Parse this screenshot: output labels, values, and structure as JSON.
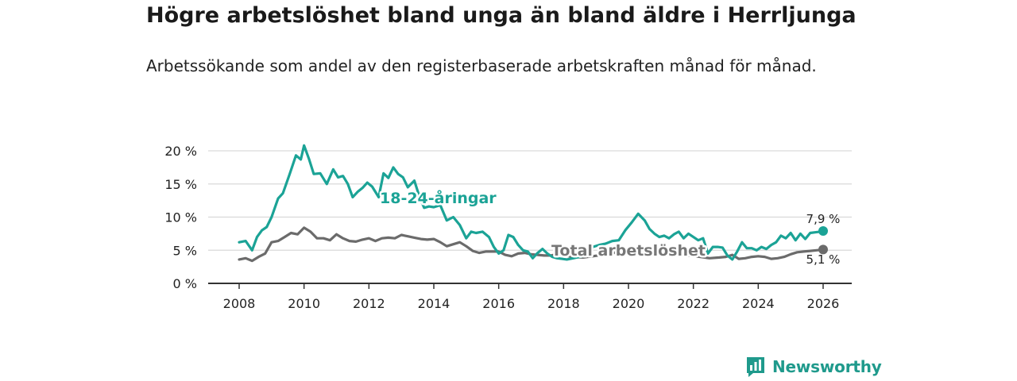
{
  "title": "Högre arbetslöshet bland unga än bland äldre i Herrljunga",
  "subtitle": "Arbetssökande som andel av den registerbaserade arbetskraften månad för månad.",
  "brand": "Newsworthy",
  "colors": {
    "youth": "#1ba396",
    "total": "#6b6b6b",
    "grid": "#d9d9d9",
    "axis": "#333333",
    "brand": "#1f9a8c"
  },
  "chart_data": {
    "type": "line",
    "title": "Högre arbetslöshet bland unga än bland äldre i Herrljunga",
    "xlabel": "",
    "ylabel": "",
    "xlim": [
      2007.5,
      2026.6
    ],
    "ylim": [
      0,
      20
    ],
    "x_ticks": [
      2008,
      2010,
      2012,
      2014,
      2016,
      2018,
      2020,
      2022,
      2024,
      2026
    ],
    "y_ticks": [
      0,
      5,
      10,
      15,
      20
    ],
    "y_tick_labels": [
      "0 %",
      "5 %",
      "10 %",
      "15 %",
      "20 %"
    ],
    "series": [
      {
        "name": "18-24-åringar",
        "label": "18-24-åringar",
        "end_label": "7,9 %",
        "x": [
          2008.0,
          2008.2,
          2008.4,
          2008.55,
          2008.7,
          2008.85,
          2009.0,
          2009.2,
          2009.35,
          2009.55,
          2009.75,
          2009.9,
          2010.0,
          2010.15,
          2010.3,
          2010.5,
          2010.7,
          2010.9,
          2011.05,
          2011.2,
          2011.35,
          2011.5,
          2011.65,
          2011.8,
          2011.95,
          2012.1,
          2012.3,
          2012.45,
          2012.6,
          2012.75,
          2012.9,
          2013.05,
          2013.2,
          2013.4,
          2013.55,
          2013.7,
          2013.85,
          2014.0,
          2014.2,
          2014.4,
          2014.6,
          2014.8,
          2015.0,
          2015.15,
          2015.3,
          2015.5,
          2015.7,
          2015.85,
          2016.0,
          2016.15,
          2016.3,
          2016.45,
          2016.6,
          2016.75,
          2016.9,
          2017.05,
          2017.2,
          2017.35,
          2017.5,
          2017.65,
          2017.8,
          2017.95,
          2018.1,
          2018.3,
          2018.5,
          2018.7,
          2018.9,
          2019.1,
          2019.3,
          2019.5,
          2019.7,
          2019.9,
          2020.1,
          2020.3,
          2020.5,
          2020.65,
          2020.8,
          2020.95,
          2021.1,
          2021.25,
          2021.4,
          2021.55,
          2021.7,
          2021.85,
          2022.0,
          2022.15,
          2022.3,
          2022.45,
          2022.6,
          2022.75,
          2022.9,
          2023.05,
          2023.2,
          2023.35,
          2023.5,
          2023.65,
          2023.8,
          2023.95,
          2024.1,
          2024.25,
          2024.4,
          2024.55,
          2024.7,
          2024.85,
          2025.0,
          2025.15,
          2025.3,
          2025.45,
          2025.6,
          2025.75,
          2025.9,
          2026.0
        ],
        "values": [
          6.2,
          6.4,
          5.0,
          7.0,
          8.0,
          8.5,
          10.0,
          12.8,
          13.6,
          16.4,
          19.3,
          18.7,
          20.8,
          18.8,
          16.5,
          16.6,
          15.0,
          17.2,
          16.0,
          16.2,
          15.0,
          13.0,
          13.8,
          14.4,
          15.2,
          14.6,
          13.0,
          16.6,
          15.9,
          17.5,
          16.5,
          16.0,
          14.5,
          15.5,
          13.2,
          11.4,
          11.6,
          11.5,
          11.8,
          9.5,
          10.0,
          8.8,
          6.8,
          7.8,
          7.6,
          7.8,
          7.0,
          5.5,
          4.5,
          5.0,
          7.3,
          7.0,
          5.8,
          5.0,
          4.8,
          3.8,
          4.6,
          5.2,
          4.5,
          4.0,
          3.8,
          3.7,
          3.6,
          3.8,
          4.0,
          4.2,
          5.5,
          5.8,
          6.0,
          6.4,
          6.5,
          8.0,
          9.2,
          10.5,
          9.5,
          8.2,
          7.5,
          7.0,
          7.2,
          6.8,
          7.4,
          7.8,
          6.8,
          7.5,
          7.0,
          6.5,
          6.8,
          4.5,
          5.5,
          5.5,
          5.4,
          4.2,
          3.6,
          4.8,
          6.2,
          5.3,
          5.3,
          5.0,
          5.5,
          5.2,
          5.8,
          6.2,
          7.2,
          6.8,
          7.6,
          6.5,
          7.5,
          6.7,
          7.6,
          7.7,
          7.8,
          7.9
        ]
      },
      {
        "name": "Total arbetslöshet",
        "label": "Total arbetslöshet",
        "end_label": "5,1 %",
        "x": [
          2008.0,
          2008.2,
          2008.4,
          2008.6,
          2008.8,
          2009.0,
          2009.2,
          2009.4,
          2009.6,
          2009.8,
          2010.0,
          2010.2,
          2010.4,
          2010.6,
          2010.8,
          2011.0,
          2011.2,
          2011.4,
          2011.6,
          2011.8,
          2012.0,
          2012.2,
          2012.4,
          2012.6,
          2012.8,
          2013.0,
          2013.2,
          2013.4,
          2013.6,
          2013.8,
          2014.0,
          2014.2,
          2014.4,
          2014.6,
          2014.8,
          2015.0,
          2015.2,
          2015.4,
          2015.6,
          2015.8,
          2016.0,
          2016.2,
          2016.4,
          2016.6,
          2016.8,
          2017.0,
          2017.2,
          2017.4,
          2017.6,
          2017.8,
          2018.0,
          2018.3,
          2018.6,
          2018.9,
          2019.2,
          2019.5,
          2019.8,
          2020.1,
          2020.4,
          2020.7,
          2021.0,
          2021.3,
          2021.6,
          2021.9,
          2022.2,
          2022.5,
          2022.8,
          2023.0,
          2023.2,
          2023.4,
          2023.6,
          2023.8,
          2024.0,
          2024.2,
          2024.4,
          2024.6,
          2024.8,
          2025.0,
          2025.2,
          2025.4,
          2025.6,
          2025.8,
          2026.0
        ],
        "values": [
          3.6,
          3.8,
          3.4,
          4.0,
          4.5,
          6.2,
          6.4,
          7.0,
          7.6,
          7.4,
          8.4,
          7.8,
          6.8,
          6.8,
          6.5,
          7.4,
          6.8,
          6.4,
          6.3,
          6.6,
          6.8,
          6.4,
          6.8,
          6.9,
          6.8,
          7.3,
          7.1,
          6.9,
          6.7,
          6.6,
          6.7,
          6.2,
          5.6,
          5.9,
          6.2,
          5.6,
          4.9,
          4.6,
          4.8,
          4.8,
          4.8,
          4.3,
          4.1,
          4.5,
          4.6,
          4.4,
          4.3,
          4.2,
          4.2,
          4.4,
          4.2,
          4.0,
          3.9,
          4.1,
          4.3,
          4.5,
          5.0,
          5.1,
          4.9,
          4.6,
          4.5,
          4.3,
          4.2,
          4.2,
          4.0,
          3.8,
          3.9,
          4.0,
          4.3,
          3.7,
          3.8,
          4.0,
          4.1,
          4.0,
          3.7,
          3.8,
          4.0,
          4.4,
          4.7,
          4.8,
          4.9,
          5.0,
          5.1
        ]
      }
    ]
  }
}
